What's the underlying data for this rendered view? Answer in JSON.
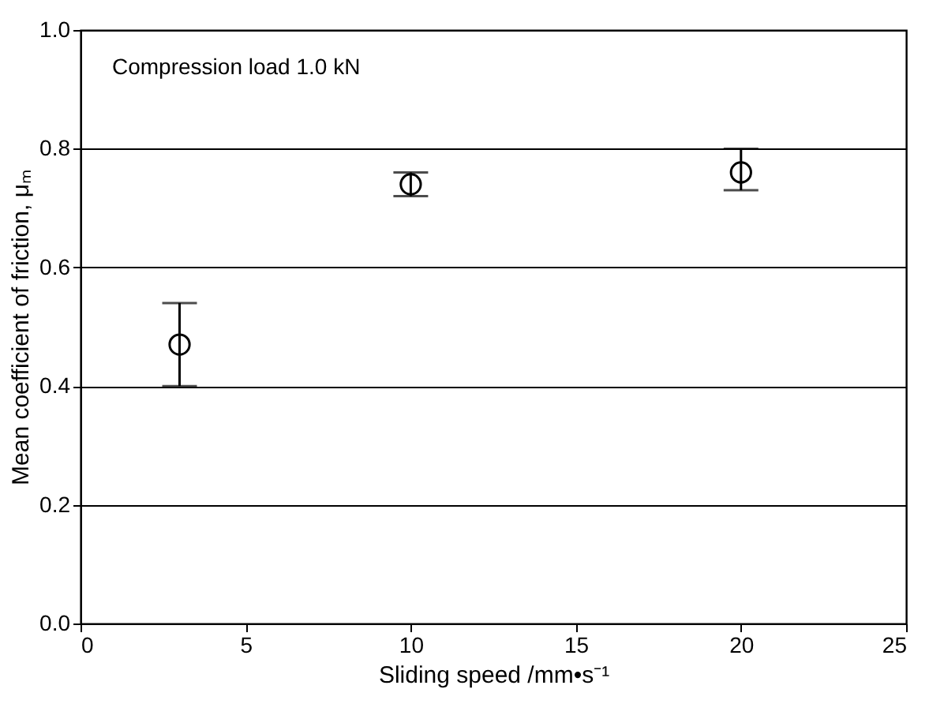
{
  "chart_data": {
    "type": "scatter",
    "x": [
      3,
      10,
      20
    ],
    "values": [
      0.47,
      0.74,
      0.76
    ],
    "errors": [
      [
        0.4,
        0.54
      ],
      [
        0.72,
        0.76
      ],
      [
        0.73,
        0.8
      ]
    ],
    "color": "#000000",
    "marker": "circle",
    "xlabel": "Sliding speed  /mm•s⁻¹",
    "ylabel": "Mean coefficient of friction, μₘ",
    "annotations": [
      "Compression load 1.0 kN"
    ],
    "xlim": [
      0,
      25
    ],
    "xticks": [
      0,
      5,
      10,
      15,
      20,
      25
    ],
    "ylim": [
      0,
      1.0
    ],
    "yticks": [
      {
        "value": 0,
        "label": "0.0"
      },
      {
        "value": 0.2,
        "label": "0.2"
      },
      {
        "value": 0.4,
        "label": "0.4"
      },
      {
        "value": 0.6,
        "label": "0.6"
      },
      {
        "value": 0.8,
        "label": "0.8"
      },
      {
        "value": 1.0,
        "label": "1.0"
      }
    ],
    "grid": "y"
  }
}
